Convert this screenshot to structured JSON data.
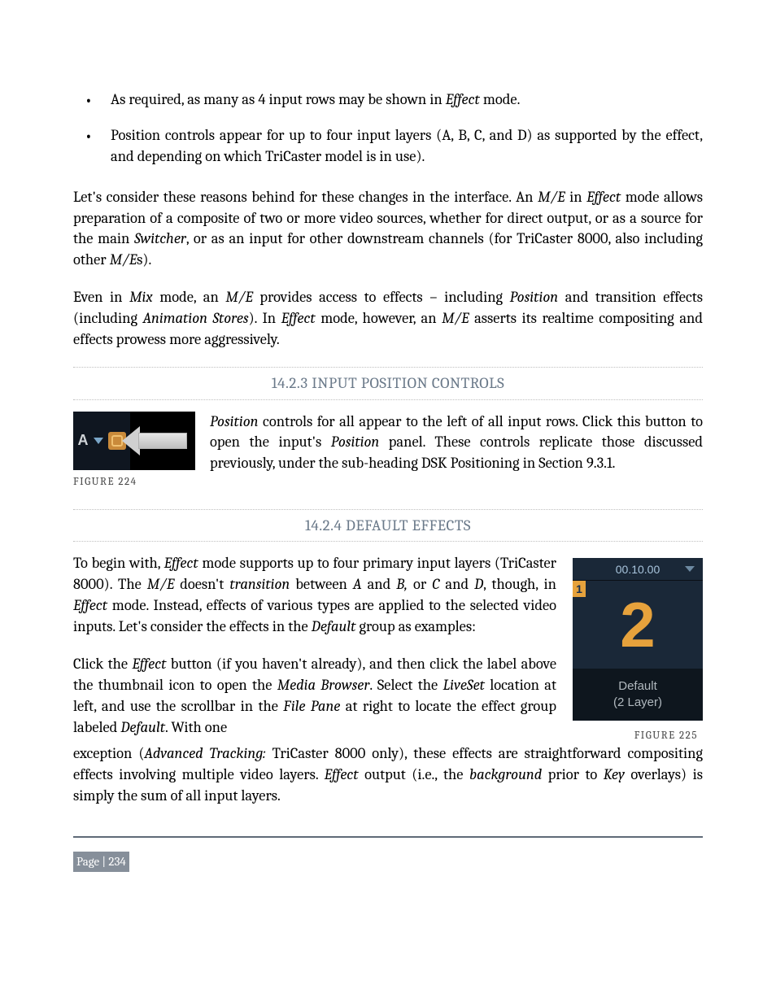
{
  "bullets": [
    {
      "pre": "As required, as many as 4 input rows may be shown in ",
      "em1": "Effect",
      "post": " mode."
    },
    {
      "pre": "Position controls appear for up to four input layers (A, B, C, and D) as supported by the effect, and depending on which TriCaster model is in use).",
      "em1": "",
      "post": ""
    }
  ],
  "para1": {
    "a": "Let's consider these reasons behind for these changes in the interface.  An ",
    "b": "M/E",
    "c": " in ",
    "d": "Effect",
    "e": " mode allows preparation of a composite of two or more video sources, whether for direct output, or as a source for the main ",
    "f": "Switcher",
    "g": ", or as an input for other downstream channels (for TriCaster 8000, also including other ",
    "h": "M/E",
    "i": "s)."
  },
  "para2": {
    "a": "Even in ",
    "b": "Mix",
    "c": " mode, an ",
    "d": "M/E",
    "e": " provides access to effects – including ",
    "f": "Position",
    "g": " and transition effects (including ",
    "h": "Animation Stores",
    "i": ").  In ",
    "j": "Effect",
    "k": " mode, however, an ",
    "l": "M/E",
    "m": " asserts its realtime compositing and effects prowess more aggressively."
  },
  "sections": {
    "s1": "14.2.3 INPUT POSITION CONTROLS",
    "s2": "14.2.4 DEFAULT EFFECTS"
  },
  "fig224": {
    "letter": "A",
    "caption": "FIGURE 224",
    "text": {
      "a": "Position",
      "b": " controls for all appear to the left of all input rows.  Click this button to open the input's ",
      "c": "Position",
      "d": " panel.  These controls replicate those discussed previously, under the sub-heading DSK Positioning in Section 9.3.1."
    }
  },
  "para3": {
    "a": "To begin with, ",
    "b": "Effect",
    "c": " mode supports up to four primary input layers (TriCaster 8000).  The ",
    "d": "M/E",
    "e": " doesn't ",
    "f": "transition",
    "g": " between ",
    "h": "A",
    "i": " and ",
    "j": "B,",
    "k": " or ",
    "l": "C",
    "m": " and ",
    "n": "D",
    "o": ", though, in ",
    "p": "Effect",
    "q": " mode.  Instead, effects of various types are applied to the selected video inputs. Let's consider the effects in the ",
    "r": "Default",
    "s": " group as examples:"
  },
  "para4": {
    "a": "Click the ",
    "b": "Effect",
    "c": " button (if you haven't already), and then click the label above the thumbnail icon to open the ",
    "d": "Media Browser",
    "e": ". Select the ",
    "f": "LiveSet",
    "g": " location at left, and use the scrollbar in the ",
    "h": "File Pane",
    "i": " at right to locate the effect group labeled ",
    "j": "Default",
    "k": ".  With one"
  },
  "para5": {
    "a": "exception (",
    "b": "Advanced Tracking:",
    "c": " TriCaster 8000 only), these effects are straightforward compositing effects involving multiple video layers. ",
    "d": "Effect",
    "e": " output (i.e., the ",
    "f": "background",
    "g": " prior to ",
    "h": "Key",
    "i": " overlays) is simply the sum of all input layers."
  },
  "fig225": {
    "time": "00.10.00",
    "badge": "1",
    "big": "2",
    "label1": "Default",
    "label2": "(2 Layer)",
    "caption": "FIGURE 225"
  },
  "footer": {
    "page": "Page | 234"
  },
  "colors": {
    "heading": "#6b7a8a",
    "fig_orange": "#e6a23c",
    "fig_darkblue": "#1a2838",
    "fig_black": "#000000",
    "footer_badge": "#868f9a"
  }
}
